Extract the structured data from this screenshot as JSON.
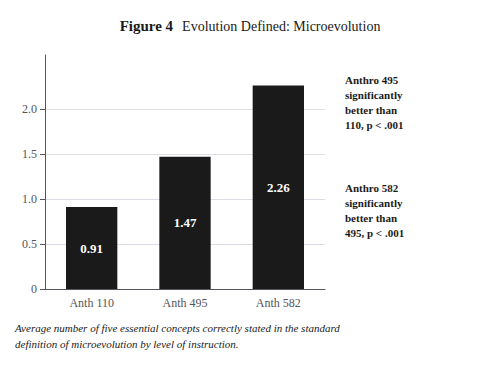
{
  "chart_data": {
    "type": "bar",
    "title": "Figure 4",
    "subtitle": "Evolution Defined: Microevolution",
    "categories": [
      "Anth 110",
      "Anth 495",
      "Anth 582"
    ],
    "values": [
      0.91,
      1.47,
      2.26
    ],
    "color": "#1a1a1a",
    "data_labels": true,
    "ylim": [
      0,
      2.6
    ],
    "yticks": [
      0,
      0.5,
      {
        "value": 1.0,
        "label": "1.0"
      },
      1.5,
      {
        "value": 2.0,
        "label": "2.0"
      }
    ],
    "grid": true,
    "annotations": [
      "Anthro 495\nsignificantly\nbetter than\n110, p < .001",
      "Anthro 582\nsignificantly\nbetter than\n495, p < .001"
    ],
    "caption": "Average number of five essential concepts correctly stated in the standard\ndefinition of microevolution by level of instruction."
  }
}
